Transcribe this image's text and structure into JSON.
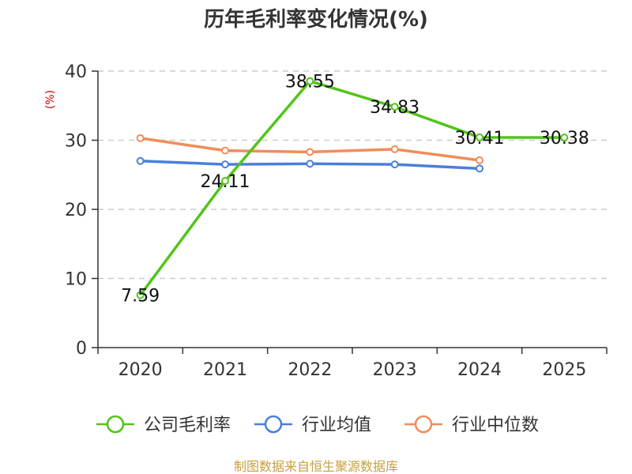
{
  "chart_data": {
    "type": "line",
    "title": "历年毛利率变化情况(%)",
    "ylabel": "(%)",
    "categories": [
      "2020",
      "2021",
      "2022",
      "2023",
      "2024",
      "2025"
    ],
    "ylim": [
      0,
      40
    ],
    "yticks": [
      0,
      10,
      20,
      30,
      40
    ],
    "grid": true,
    "legend_position": "bottom",
    "series": [
      {
        "name": "公司毛利率",
        "color": "#52c41a",
        "values": [
          7.59,
          24.11,
          38.55,
          34.83,
          30.41,
          30.38
        ],
        "labels": [
          "7.59",
          "24.11",
          "38.55",
          "34.83",
          "30.41",
          "30.38"
        ]
      },
      {
        "name": "行业均值",
        "color": "#4a7fdc",
        "values": [
          27.0,
          26.5,
          26.6,
          26.5,
          25.9,
          null
        ]
      },
      {
        "name": "行业中位数",
        "color": "#f28c5a",
        "values": [
          30.3,
          28.5,
          28.3,
          28.7,
          27.1,
          null
        ]
      }
    ],
    "source": "制图数据来自恒生聚源数据库"
  }
}
